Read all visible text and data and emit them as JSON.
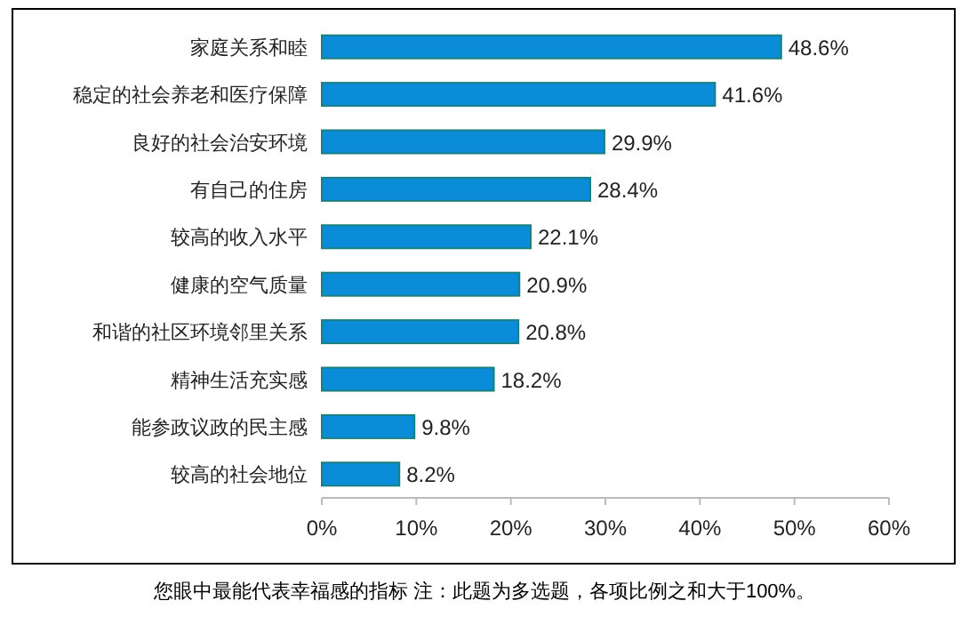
{
  "chart_data": {
    "type": "bar",
    "orientation": "horizontal",
    "categories": [
      "家庭关系和睦",
      "稳定的社会养老和医疗保障",
      "良好的社会治安环境",
      "有自己的住房",
      "较高的收入水平",
      "健康的空气质量",
      "和谐的社区环境邻里关系",
      "精神生活充实感",
      "能参政议政的民主感",
      "较高的社会地位"
    ],
    "values": [
      48.6,
      41.6,
      29.9,
      28.4,
      22.1,
      20.9,
      20.8,
      18.2,
      9.8,
      8.2
    ],
    "value_labels": [
      "48.6%",
      "41.6%",
      "29.9%",
      "28.4%",
      "22.1%",
      "20.9%",
      "20.8%",
      "18.2%",
      "9.8%",
      "8.2%"
    ],
    "color": "#0a8cd8",
    "xlim": [
      0,
      60
    ],
    "xticks": [
      {
        "value": 0,
        "label": "0%"
      },
      {
        "value": 10,
        "label": "10%"
      },
      {
        "value": 20,
        "label": "20%"
      },
      {
        "value": 30,
        "label": "30%"
      },
      {
        "value": 40,
        "label": "40%"
      },
      {
        "value": 50,
        "label": "50%"
      },
      {
        "value": 60,
        "label": "60%"
      }
    ],
    "grid": false,
    "annotations": [
      "您眼中最能代表幸福感的指标 注：此题为多选题，各项比例之和大于100%。"
    ]
  }
}
